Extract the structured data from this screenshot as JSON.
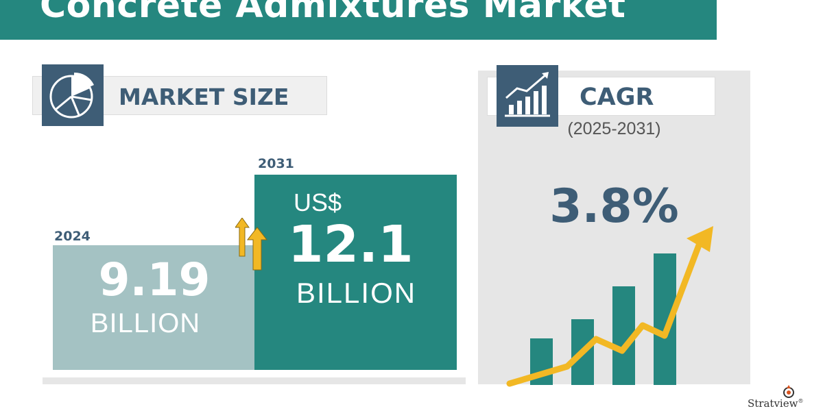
{
  "header": {
    "title": "Concrete Admixtures Market"
  },
  "market_size": {
    "label": "MARKET SIZE",
    "icon": "pie-chart-icon",
    "start": {
      "year": "2024",
      "value": "9.19",
      "unit": "BILLION"
    },
    "end": {
      "year": "2031",
      "currency": "US$",
      "value": "12.1",
      "unit": "BILLION"
    },
    "growth_icon": "up-arrows-icon"
  },
  "cagr": {
    "label": "CAGR",
    "icon": "bar-chart-growth-icon",
    "period": "(2025-2031)",
    "value": "3.8%",
    "chart_icon": "rising-bars-arrow-icon"
  },
  "brand": {
    "name": "Stratview",
    "mark": "®"
  },
  "colors": {
    "teal": "#25877f",
    "light_teal": "#a4c2c3",
    "navy": "#3e5d76",
    "yellow": "#f2b824",
    "panel_gray": "#e6e6e6"
  }
}
